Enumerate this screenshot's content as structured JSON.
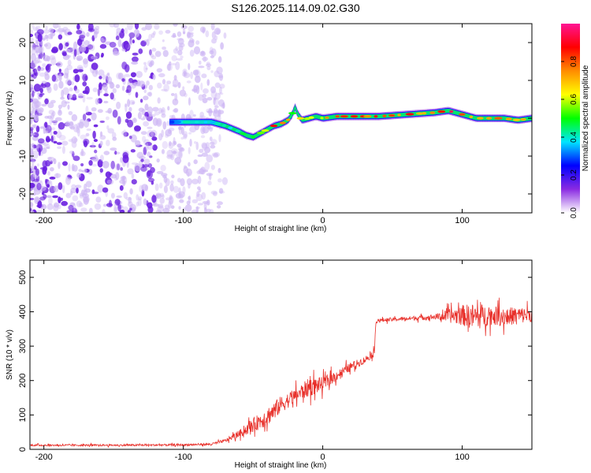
{
  "title": "S126.2025.114.09.02.G30",
  "colors": {
    "snr_line": "#e8302a",
    "scatter_purple": "#6a1fe0",
    "scatter_faint": "#cdb6f4"
  },
  "chart_data": [
    {
      "type": "heatmap",
      "xlabel": "Height of straight line (km)",
      "ylabel": "Frequency (Hz)",
      "xlim": [
        -210,
        150
      ],
      "ylim": [
        -25,
        25
      ],
      "xticks": [
        -200,
        -100,
        0,
        100
      ],
      "yticks": [
        -20,
        -10,
        0,
        10,
        20
      ],
      "xtick_labels": [
        "-200",
        "-100",
        "0",
        "100"
      ],
      "ytick_labels": [
        "-20",
        "-10",
        "0",
        "10",
        "20"
      ],
      "colorbar": {
        "label": "Normalized spectral amplitude",
        "range": [
          0,
          1
        ],
        "ticks": [
          0.0,
          0.2,
          0.4,
          0.6,
          0.8
        ],
        "tick_labels": [
          "0.0",
          "0.2",
          "0.4",
          "0.6",
          "0.8"
        ],
        "stops": [
          "#ffffff",
          "#8a2be2",
          "#0000ff",
          "#00e5ff",
          "#00ff00",
          "#ffff00",
          "#ff8c00",
          "#ff0000",
          "#ff1493"
        ]
      },
      "noise_region": {
        "x_range": [
          -210,
          -70
        ],
        "level": 0.15
      },
      "ridge": {
        "x": [
          -110,
          -100,
          -90,
          -80,
          -70,
          -60,
          -55,
          -50,
          -45,
          -40,
          -35,
          -30,
          -25,
          -22,
          -20,
          -18,
          -15,
          -10,
          -5,
          0,
          10,
          20,
          40,
          60,
          80,
          90,
          100,
          110,
          120,
          130,
          140,
          150
        ],
        "y": [
          -1,
          -1,
          -1,
          -1,
          -2,
          -3.5,
          -4.5,
          -5,
          -4,
          -3,
          -2,
          -1.5,
          -0.5,
          1,
          3,
          1,
          -0.5,
          0,
          0.5,
          0,
          0.5,
          0.5,
          0.5,
          1,
          1.5,
          2,
          1,
          0,
          0,
          0,
          -0.5,
          0
        ],
        "amplitude": [
          0.3,
          0.4,
          0.4,
          0.4,
          0.45,
          0.5,
          0.45,
          0.5,
          0.6,
          0.7,
          0.85,
          0.8,
          0.85,
          0.6,
          0.5,
          0.6,
          0.7,
          0.7,
          0.75,
          0.65,
          0.9,
          0.95,
          0.85,
          0.85,
          0.85,
          0.95,
          0.8,
          0.85,
          0.9,
          0.9,
          0.85,
          0.8
        ]
      }
    },
    {
      "type": "line",
      "xlabel": "Height of straight line (km)",
      "ylabel": "SNR (10 * v/v)",
      "xlim": [
        -210,
        150
      ],
      "ylim": [
        0,
        550
      ],
      "xticks": [
        -200,
        -100,
        0,
        100
      ],
      "yticks": [
        0,
        100,
        200,
        300,
        400,
        500
      ],
      "xtick_labels": [
        "-200",
        "-100",
        "0",
        "100"
      ],
      "ytick_labels": [
        "0",
        "100",
        "200",
        "300",
        "400",
        "500"
      ],
      "series": [
        {
          "x": [
            -210,
            -150,
            -100,
            -80,
            -70,
            -60,
            -50,
            -40,
            -30,
            -20,
            -10,
            0,
            10,
            20,
            30,
            37,
            38,
            40,
            60,
            80,
            100,
            110,
            120,
            130,
            140,
            150
          ],
          "y": [
            12,
            12,
            13,
            15,
            25,
            45,
            70,
            95,
            130,
            155,
            180,
            190,
            215,
            240,
            260,
            280,
            370,
            375,
            380,
            385,
            390,
            385,
            390,
            385,
            390,
            390
          ],
          "spread": [
            5,
            5,
            6,
            6,
            10,
            20,
            40,
            55,
            50,
            40,
            55,
            40,
            30,
            25,
            20,
            20,
            10,
            10,
            12,
            15,
            60,
            80,
            55,
            55,
            50,
            40
          ]
        }
      ]
    }
  ]
}
